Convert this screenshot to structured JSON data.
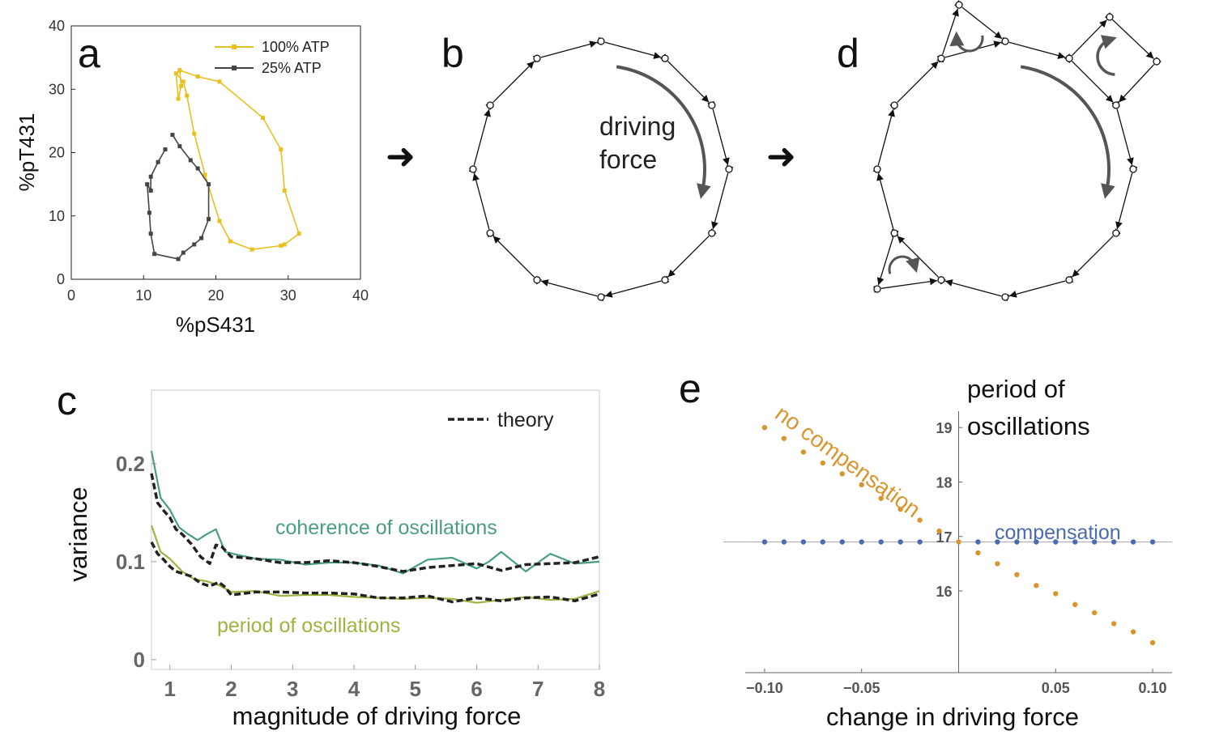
{
  "labels": {
    "a": "a",
    "b": "b",
    "c": "c",
    "d": "d",
    "e": "e"
  },
  "arrow_glyph": "➜",
  "panel_b": {
    "text_line1": "driving",
    "text_line2": "force"
  },
  "chart_data": [
    {
      "id": "a",
      "type": "line",
      "xlabel": "%pS431",
      "ylabel": "%pT431",
      "xlim": [
        0,
        40
      ],
      "ylim": [
        0,
        40
      ],
      "xticks": [
        0,
        10,
        20,
        30,
        40
      ],
      "yticks": [
        0,
        10,
        20,
        30,
        40
      ],
      "legend_position": "top-right",
      "series": [
        {
          "name": "100% ATP",
          "color": "#e8c020",
          "x": [
            15,
            17.5,
            20.5,
            26.5,
            29,
            29.5,
            31.5,
            29.5,
            29,
            25,
            22,
            20.5,
            18.5,
            17,
            16,
            15.5,
            14.5,
            14.8,
            15.2,
            15
          ],
          "y": [
            33,
            32,
            31.2,
            25.5,
            20.5,
            14,
            7.2,
            5.5,
            5.3,
            4.7,
            6,
            9.2,
            16.5,
            23,
            29,
            31.2,
            32.5,
            28.5,
            30.5,
            33
          ]
        },
        {
          "name": "25% ATP",
          "color": "#444444",
          "x": [
            14,
            15,
            16.5,
            17.5,
            19,
            19,
            18,
            17,
            15.5,
            14.8,
            11.5,
            11,
            10.8,
            10.5,
            11,
            11,
            12,
            13
          ],
          "y": [
            22.8,
            21,
            18.8,
            17.5,
            15,
            9.5,
            6.5,
            5.5,
            4.2,
            3.2,
            4,
            7.2,
            10.5,
            15,
            14,
            16.2,
            18.5,
            20.5
          ]
        }
      ]
    },
    {
      "id": "c",
      "type": "line",
      "xlabel": "magnitude of driving force",
      "ylabel": "variance",
      "xlim": [
        0.7,
        8
      ],
      "ylim": [
        -0.01,
        0.275
      ],
      "xticks": [
        1,
        2,
        3,
        4,
        5,
        6,
        7,
        8
      ],
      "yticks": [
        0,
        0.1,
        0.2
      ],
      "legend_position": "top-right",
      "series": [
        {
          "name": "coherence of oscillations",
          "color": "#4a9e80",
          "x": [
            0.7,
            0.85,
            1.0,
            1.15,
            1.3,
            1.45,
            1.6,
            1.75,
            1.9,
            2.1,
            2.4,
            2.8,
            3.2,
            3.6,
            4.0,
            4.4,
            4.8,
            5.2,
            5.6,
            6.0,
            6.2,
            6.4,
            6.8,
            7.2,
            7.6,
            8.0
          ],
          "y": [
            0.213,
            0.165,
            0.153,
            0.135,
            0.128,
            0.122,
            0.128,
            0.133,
            0.11,
            0.107,
            0.103,
            0.102,
            0.097,
            0.099,
            0.099,
            0.096,
            0.088,
            0.102,
            0.104,
            0.093,
            0.1,
            0.11,
            0.09,
            0.108,
            0.098,
            0.1
          ]
        },
        {
          "name": "period of oscillations",
          "color": "#9ab540",
          "x": [
            0.7,
            0.85,
            1.0,
            1.2,
            1.4,
            1.6,
            1.8,
            2.0,
            2.4,
            2.8,
            3.2,
            3.6,
            4.0,
            4.4,
            4.8,
            5.2,
            5.6,
            6.0,
            6.4,
            6.8,
            7.2,
            7.6,
            8.0
          ],
          "y": [
            0.137,
            0.11,
            0.103,
            0.09,
            0.082,
            0.08,
            0.076,
            0.069,
            0.07,
            0.065,
            0.066,
            0.066,
            0.064,
            0.063,
            0.062,
            0.063,
            0.062,
            0.058,
            0.061,
            0.064,
            0.061,
            0.062,
            0.07
          ]
        },
        {
          "name": "theory",
          "color": "#222222",
          "dashed": true,
          "x": [
            0.7,
            0.8,
            0.9,
            1.0,
            1.1,
            1.2,
            1.35,
            1.5,
            1.65,
            1.75,
            1.85,
            2.0,
            2.4,
            2.8,
            3.2,
            3.6,
            4.0,
            4.4,
            4.8,
            5.2,
            5.6,
            6.0,
            6.4,
            6.8,
            7.2,
            7.6,
            8.0
          ],
          "y": [
            0.19,
            0.16,
            0.152,
            0.145,
            0.133,
            0.128,
            0.118,
            0.105,
            0.098,
            0.117,
            0.115,
            0.105,
            0.103,
            0.099,
            0.099,
            0.101,
            0.099,
            0.095,
            0.09,
            0.094,
            0.096,
            0.098,
            0.091,
            0.097,
            0.098,
            0.099,
            0.105
          ]
        },
        {
          "name": "theory",
          "color": "#222222",
          "dashed": true,
          "x": [
            0.7,
            0.8,
            0.9,
            1.0,
            1.1,
            1.2,
            1.35,
            1.5,
            1.65,
            1.8,
            1.9,
            2.0,
            2.4,
            2.8,
            3.2,
            3.6,
            4.0,
            4.4,
            4.8,
            5.2,
            5.6,
            6.0,
            6.4,
            6.8,
            7.2,
            7.6,
            8.0
          ],
          "y": [
            0.12,
            0.108,
            0.102,
            0.095,
            0.09,
            0.088,
            0.085,
            0.078,
            0.075,
            0.079,
            0.074,
            0.066,
            0.069,
            0.069,
            0.068,
            0.068,
            0.067,
            0.063,
            0.063,
            0.065,
            0.059,
            0.063,
            0.06,
            0.063,
            0.064,
            0.06,
            0.067
          ]
        }
      ]
    },
    {
      "id": "e",
      "type": "scatter",
      "xlabel": "change in driving force",
      "ylabel": "period of oscillations",
      "xlim": [
        -0.11,
        0.11
      ],
      "ylim": [
        14.5,
        19.3
      ],
      "xticks": [
        -0.1,
        -0.05,
        0.05,
        0.1
      ],
      "xtick_labels": [
        "−0.10",
        "−0.05",
        "0.05",
        "0.10"
      ],
      "yticks": [
        16,
        17,
        18,
        19
      ],
      "reference_line_y": 16.9,
      "series": [
        {
          "name": "no compensation",
          "color": "#d9952e",
          "x": [
            -0.1,
            -0.09,
            -0.08,
            -0.07,
            -0.06,
            -0.05,
            -0.04,
            -0.03,
            -0.02,
            -0.01,
            0.0,
            0.01,
            0.02,
            0.03,
            0.04,
            0.05,
            0.06,
            0.07,
            0.08,
            0.09,
            0.1
          ],
          "y": [
            19.0,
            18.8,
            18.55,
            18.35,
            18.15,
            17.95,
            17.7,
            17.5,
            17.3,
            17.1,
            16.9,
            16.7,
            16.5,
            16.3,
            16.1,
            15.95,
            15.75,
            15.6,
            15.4,
            15.25,
            15.05
          ]
        },
        {
          "name": "compensation",
          "color": "#4a6bb0",
          "x": [
            -0.1,
            -0.09,
            -0.08,
            -0.07,
            -0.06,
            -0.05,
            -0.04,
            -0.03,
            -0.02,
            0.01,
            0.02,
            0.03,
            0.04,
            0.05,
            0.06,
            0.07,
            0.08,
            0.09,
            0.1
          ],
          "y": [
            16.9,
            16.9,
            16.9,
            16.9,
            16.9,
            16.9,
            16.9,
            16.9,
            16.9,
            16.9,
            16.9,
            16.9,
            16.9,
            16.9,
            16.9,
            16.9,
            16.9,
            16.9,
            16.9
          ]
        }
      ]
    }
  ]
}
